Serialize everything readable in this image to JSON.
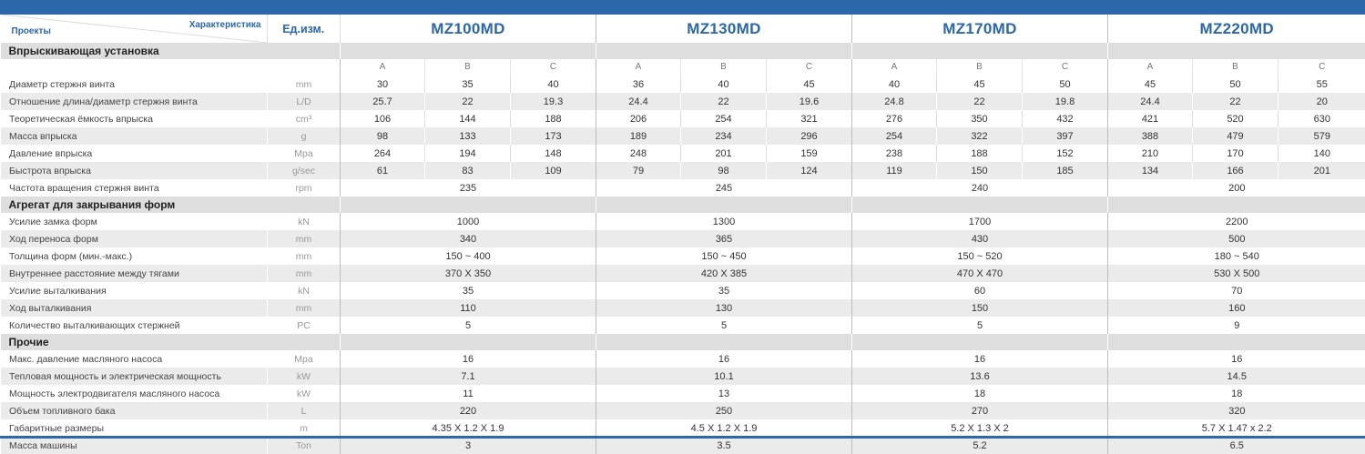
{
  "header": {
    "corner_top": "Характеристика",
    "corner_bottom": "Проекты",
    "unit_header": "Ед.изм.",
    "models": [
      "MZ100MD",
      "MZ130MD",
      "MZ170MD",
      "MZ220MD"
    ],
    "sub": [
      "A",
      "B",
      "C"
    ]
  },
  "sections": [
    {
      "title": "Впрыскивающая установка",
      "rows": [
        {
          "label": "Диаметр стержня винта",
          "unit": "mm",
          "values": [
            "30",
            "35",
            "40",
            "36",
            "40",
            "45",
            "40",
            "45",
            "50",
            "45",
            "50",
            "55"
          ]
        },
        {
          "label": "Отношение длина/диаметр стержня винта",
          "unit": "L/D",
          "values": [
            "25.7",
            "22",
            "19.3",
            "24.4",
            "22",
            "19.6",
            "24.8",
            "22",
            "19.8",
            "24.4",
            "22",
            "20"
          ]
        },
        {
          "label": "Теоретическая ёмкость впрыска",
          "unit": "cm³",
          "values": [
            "106",
            "144",
            "188",
            "206",
            "254",
            "321",
            "276",
            "350",
            "432",
            "421",
            "520",
            "630"
          ]
        },
        {
          "label": "Масса впрыска",
          "unit": "g",
          "values": [
            "98",
            "133",
            "173",
            "189",
            "234",
            "296",
            "254",
            "322",
            "397",
            "388",
            "479",
            "579"
          ]
        },
        {
          "label": "Давление впрыска",
          "unit": "Mpa",
          "values": [
            "264",
            "194",
            "148",
            "248",
            "201",
            "159",
            "238",
            "188",
            "152",
            "210",
            "170",
            "140"
          ]
        },
        {
          "label": "Быстрота впрыска",
          "unit": "g/sec",
          "values": [
            "61",
            "83",
            "109",
            "79",
            "98",
            "124",
            "119",
            "150",
            "185",
            "134",
            "166",
            "201"
          ]
        },
        {
          "label": "Частота вращения стержня винта",
          "unit": "rpm",
          "values": [
            "235",
            "245",
            "240",
            "200"
          ]
        }
      ]
    },
    {
      "title": "Агрегат для закрывания форм",
      "rows": [
        {
          "label": "Усилие замка форм",
          "unit": "kN",
          "values": [
            "1000",
            "1300",
            "1700",
            "2200"
          ]
        },
        {
          "label": "Ход переноса форм",
          "unit": "mm",
          "values": [
            "340",
            "365",
            "430",
            "500"
          ]
        },
        {
          "label": "Толщина форм (мин.-макс.)",
          "unit": "mm",
          "values": [
            "150 ~ 400",
            "150 ~ 450",
            "150 ~ 520",
            "180 ~ 540"
          ]
        },
        {
          "label": "Внутреннее расстояние между тягами",
          "unit": "mm",
          "values": [
            "370 X 350",
            "420 X 385",
            "470 X 470",
            "530 X 500"
          ]
        },
        {
          "label": "Усилие выталкивания",
          "unit": "kN",
          "values": [
            "35",
            "35",
            "60",
            "70"
          ]
        },
        {
          "label": "Ход выталкивания",
          "unit": "mm",
          "values": [
            "110",
            "130",
            "150",
            "160"
          ]
        },
        {
          "label": "Количество выталкивающих стержней",
          "unit": "PC",
          "values": [
            "5",
            "5",
            "5",
            "9"
          ]
        }
      ]
    },
    {
      "title": "Прочие",
      "rows": [
        {
          "label": "Макс. давление масляного насоса",
          "unit": "Mpa",
          "values": [
            "16",
            "16",
            "16",
            "16"
          ]
        },
        {
          "label": "Тепловая мощность и электрическая мощность",
          "unit": "kW",
          "values": [
            "7.1",
            "10.1",
            "13.6",
            "14.5"
          ]
        },
        {
          "label": "Мощность электродвигателя масляного насоса",
          "unit": "kW",
          "values": [
            "11",
            "13",
            "18",
            "18"
          ]
        },
        {
          "label": "Объем топливного бака",
          "unit": "L",
          "values": [
            "220",
            "250",
            "270",
            "320"
          ]
        },
        {
          "label": "Габаритные размеры",
          "unit": "m",
          "values": [
            "4.35 X 1.2 X 1.9",
            "4.5 X 1.2 X 1.9",
            "5.2 X 1.3 X 2",
            "5.7 X 1.47 x 2.2"
          ]
        },
        {
          "label": "Масса машины",
          "unit": "Ton",
          "values": [
            "3",
            "3.5",
            "5.2",
            "6.5"
          ]
        }
      ]
    }
  ],
  "colors": {
    "accent": "#2b67a9",
    "row_alt": "#ebebeb",
    "section_bg": "#dedede"
  }
}
